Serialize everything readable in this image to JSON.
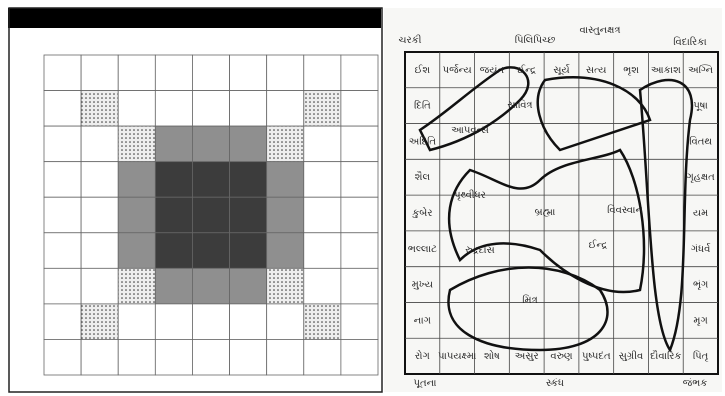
{
  "mandala": {
    "top_labels": [
      "ચરકી",
      "પિલિપિચ્છ",
      "વાસ્તુનક્ષત્ર",
      "વિદારિકા"
    ],
    "bottom_labels": [
      "પૂતના",
      "સ્કંધ",
      "જંભક"
    ],
    "ring": {
      "top": [
        "ઈશ",
        "પર્જન્ય",
        "જયંત",
        "ઈન્દ્ર",
        "સૂર્ય",
        "સત્ય",
        "ભૃશ",
        "આકાશ",
        "અગ્નિ"
      ],
      "right": [
        "પૂષા",
        "વિતથ",
        "ગૃહક્ષત",
        "યમ",
        "ગંધર્વ",
        "ભૃંગ",
        "મૃગ"
      ],
      "bottom": [
        "રોગ",
        "પાપયક્ષ્મા",
        "શોષ",
        "અસુર",
        "વરુણ",
        "પુષ્પદંત",
        "સુગ્રીવ",
        "દૌવારિક",
        "પિતૃ"
      ],
      "left": [
        "દિતિ",
        "અદિતિ",
        "શૈલ",
        "કુબેર",
        "ભલ્લાટ",
        "મુખ્ય",
        "નાગ"
      ]
    },
    "inner": [
      "આપવત્સ",
      "સાવિત્ર",
      "પૃથ્વીધર",
      "બ્રહ્મા",
      "વિવસ્વાન",
      "રુદ્રદાસ",
      "મિત્ર",
      "ઈન્દ્ર"
    ]
  }
}
